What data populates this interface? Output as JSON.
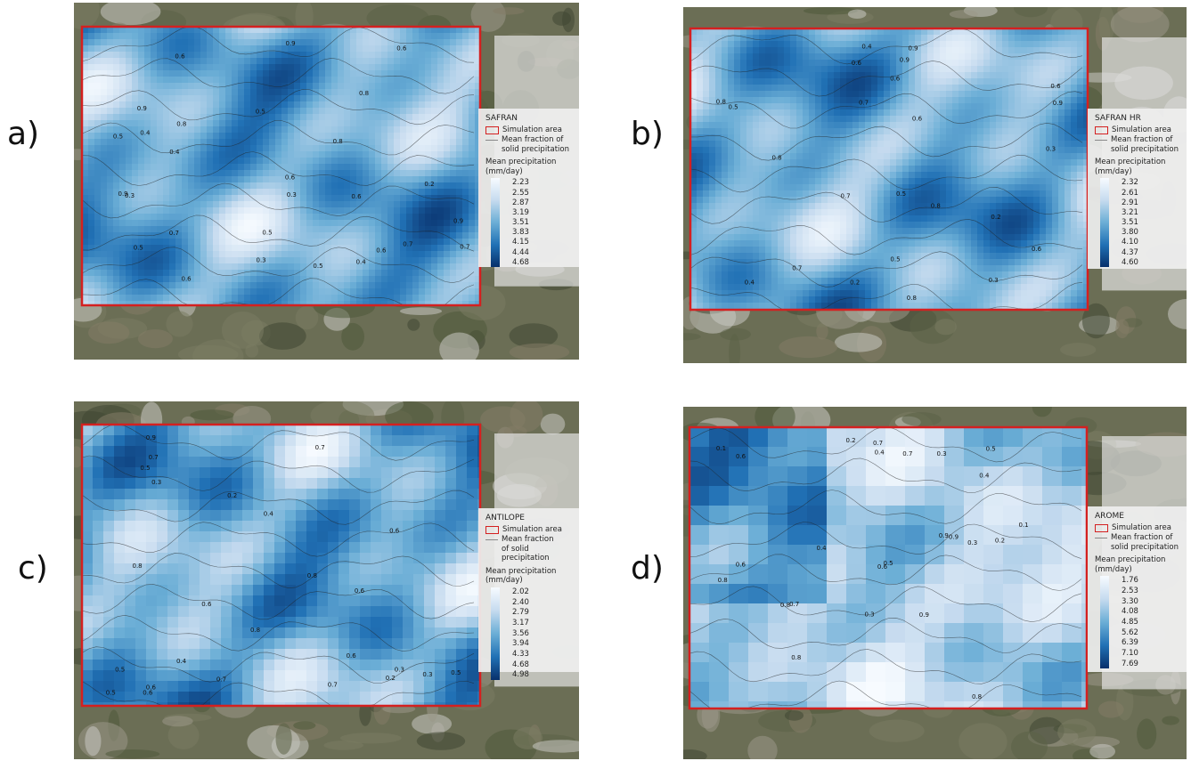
{
  "colors": {
    "simulation_outline": "#d42020",
    "precip_low": "#f7fbff",
    "precip_high": "#08306b",
    "contour": "#222222",
    "legend_bg": "#eeeeee"
  },
  "panels": [
    {
      "label": "a)",
      "legend": {
        "title": "SAFRAN",
        "simulation_area": "Simulation area",
        "mean_fraction": "Mean fraction of\nsolid precipitation",
        "precip_title": "Mean precipitation (mm/day)",
        "values": [
          "2.23",
          "2.55",
          "2.87",
          "3.19",
          "3.51",
          "3.83",
          "4.15",
          "4.44",
          "4.68"
        ]
      },
      "contour_labels": [
        "0.7",
        "0.6",
        "0.6",
        "0.5",
        "0.5",
        "0.4",
        "0.3",
        "0.8",
        "0.9",
        "0.6",
        "0.8",
        "0.9",
        "0.4",
        "0.3",
        "0.5",
        "0.2",
        "0.6",
        "0.6",
        "0.5",
        "0.7",
        "0.8",
        "0.9",
        "0.7",
        "0.3",
        "0.4",
        "0.5",
        "0.6",
        "0.9"
      ]
    },
    {
      "label": "b)",
      "legend": {
        "title": "SAFRAN HR",
        "simulation_area": "Simulation area",
        "mean_fraction": "Mean fraction of\nsolid precipitation",
        "precip_title": "Mean precipitation (mm/day)",
        "values": [
          "2.32",
          "2.61",
          "2.91",
          "3.21",
          "3.51",
          "3.80",
          "4.10",
          "4.37",
          "4.60"
        ]
      },
      "contour_labels": [
        "0.6",
        "0.7",
        "0.8",
        "0.6",
        "0.5",
        "0.4",
        "0.3",
        "0.2",
        "0.9",
        "0.8",
        "0.7",
        "0.6",
        "0.4",
        "0.3",
        "0.2",
        "0.5",
        "0.9",
        "0.8",
        "0.6",
        "0.7",
        "0.9",
        "0.8",
        "0.6",
        "0.5"
      ]
    },
    {
      "label": "c)",
      "legend": {
        "title": "ANTILOPE",
        "simulation_area": "Simulation area",
        "mean_fraction": "Mean fraction\nof solid precipitation",
        "precip_title": "Mean precipitation (mm/day)",
        "values": [
          "2.02",
          "2.40",
          "2.79",
          "3.17",
          "3.56",
          "3.94",
          "4.33",
          "4.68",
          "4.98"
        ]
      },
      "contour_labels": [
        "0.6",
        "0.7",
        "0.6",
        "0.5",
        "0.4",
        "0.3",
        "0.2",
        "0.8",
        "0.7",
        "0.6",
        "0.5",
        "0.3",
        "0.8",
        "0.6",
        "0.7",
        "0.5",
        "0.4",
        "0.3",
        "0.6",
        "0.7",
        "0.8",
        "0.9",
        "0.6",
        "0.5",
        "0.2"
      ]
    },
    {
      "label": "d)",
      "legend": {
        "title": "AROME",
        "simulation_area": "Simulation area",
        "mean_fraction": "Mean fraction of\nsolid precipitation",
        "precip_title": "Mean precipitation (mm/day)",
        "values": [
          "1.76",
          "2.53",
          "3.30",
          "4.08",
          "4.85",
          "5.62",
          "6.39",
          "7.10",
          "7.69"
        ]
      },
      "contour_labels": [
        "0.8",
        "0.7",
        "0.6",
        "0.3",
        "0.2",
        "0.1",
        "0.5",
        "0.4",
        "0.3",
        "0.7",
        "0.9",
        "0.8",
        "0.6",
        "0.4",
        "0.5",
        "0.3",
        "0.6",
        "0.8",
        "0.2",
        "0.1",
        "0.4",
        "0.9",
        "0.7",
        "0.8",
        "0.9"
      ]
    }
  ]
}
